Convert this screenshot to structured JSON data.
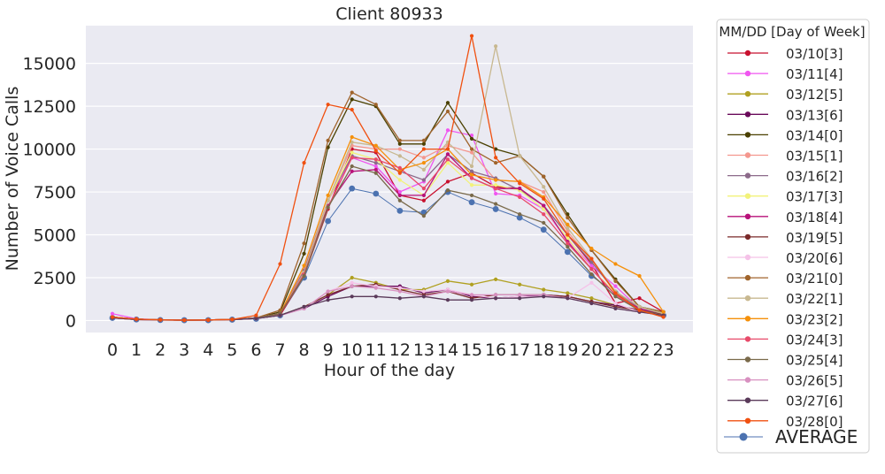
{
  "chart_data": {
    "type": "line",
    "title": "Client 80933",
    "xlabel": "Hour of the day",
    "ylabel": "Number of Voice Calls",
    "x": [
      0,
      1,
      2,
      3,
      4,
      5,
      6,
      7,
      8,
      9,
      10,
      11,
      12,
      13,
      14,
      15,
      16,
      17,
      18,
      19,
      20,
      21,
      22,
      23
    ],
    "ylim": [
      -700,
      17200
    ],
    "yticks": [
      0,
      2500,
      5000,
      7500,
      10000,
      12500,
      15000
    ],
    "grid": true,
    "legend_title": "MM/DD [Day of Week]",
    "legend_position": "outside-right",
    "series": [
      {
        "name": "03/10[3]",
        "color": "#c8102e",
        "values": [
          200,
          80,
          40,
          20,
          30,
          60,
          120,
          300,
          2600,
          6500,
          10000,
          9800,
          7300,
          7000,
          8100,
          8600,
          7800,
          7700,
          6700,
          5000,
          3300,
          1000,
          1300,
          500
        ]
      },
      {
        "name": "03/11[4]",
        "color": "#f055f0",
        "values": [
          400,
          100,
          40,
          20,
          30,
          60,
          150,
          400,
          2700,
          7000,
          9500,
          9000,
          7500,
          8100,
          11100,
          10800,
          7400,
          7300,
          6500,
          4700,
          3200,
          2000,
          700,
          300
        ]
      },
      {
        "name": "03/12[5]",
        "color": "#b0a020",
        "values": [
          150,
          60,
          30,
          20,
          20,
          50,
          120,
          300,
          800,
          1500,
          2500,
          2200,
          1800,
          1800,
          2300,
          2100,
          2400,
          2100,
          1800,
          1600,
          1300,
          900,
          600,
          350
        ]
      },
      {
        "name": "03/13[6]",
        "color": "#6a0a5a",
        "values": [
          150,
          60,
          30,
          20,
          20,
          50,
          120,
          300,
          700,
          1400,
          2000,
          2000,
          2000,
          1600,
          1800,
          1400,
          1300,
          1400,
          1500,
          1400,
          1100,
          900,
          600,
          300
        ]
      },
      {
        "name": "03/14[0]",
        "color": "#4a4000",
        "values": [
          200,
          80,
          40,
          20,
          30,
          60,
          150,
          500,
          3900,
          10100,
          12900,
          12500,
          10300,
          10300,
          12700,
          10600,
          10000,
          9600,
          8400,
          6200,
          4100,
          2400,
          800,
          500
        ]
      },
      {
        "name": "03/15[1]",
        "color": "#f4978e",
        "values": [
          200,
          80,
          40,
          20,
          30,
          60,
          150,
          400,
          3000,
          7000,
          10200,
          10000,
          10000,
          9500,
          10200,
          9800,
          8200,
          8100,
          7500,
          5200,
          3500,
          1600,
          800,
          400
        ]
      },
      {
        "name": "03/16[2]",
        "color": "#8c6a8a",
        "values": [
          200,
          80,
          40,
          20,
          30,
          60,
          150,
          400,
          2900,
          7000,
          9600,
          9200,
          8700,
          8200,
          9700,
          8700,
          8300,
          7600,
          6700,
          5000,
          3400,
          1700,
          700,
          400
        ]
      },
      {
        "name": "03/17[3]",
        "color": "#f2f27a",
        "values": [
          200,
          80,
          40,
          20,
          30,
          60,
          150,
          400,
          2600,
          7000,
          9800,
          9400,
          8200,
          7300,
          9200,
          7900,
          7900,
          7600,
          6500,
          4800,
          3000,
          1600,
          600,
          300
        ]
      },
      {
        "name": "03/18[4]",
        "color": "#b8127a",
        "values": [
          200,
          80,
          40,
          20,
          30,
          60,
          150,
          400,
          2700,
          6700,
          8700,
          8800,
          7300,
          7300,
          9700,
          8300,
          7700,
          7700,
          6700,
          4600,
          3000,
          1500,
          700,
          300
        ]
      },
      {
        "name": "03/19[5]",
        "color": "#7a2a2a",
        "values": [
          150,
          60,
          30,
          20,
          20,
          50,
          120,
          300,
          800,
          1500,
          2000,
          2100,
          1800,
          1500,
          1700,
          1300,
          1500,
          1500,
          1500,
          1400,
          1100,
          800,
          600,
          350
        ]
      },
      {
        "name": "03/20[6]",
        "color": "#f5c2e8",
        "values": [
          150,
          60,
          30,
          20,
          20,
          50,
          120,
          300,
          700,
          1700,
          2200,
          2000,
          1900,
          1700,
          1800,
          1500,
          1300,
          1400,
          1400,
          1300,
          2200,
          1000,
          500,
          300
        ]
      },
      {
        "name": "03/21[0]",
        "color": "#a0642c",
        "values": [
          200,
          80,
          40,
          20,
          30,
          60,
          150,
          600,
          4500,
          10500,
          13300,
          12600,
          10500,
          10500,
          12200,
          10000,
          9200,
          9600,
          8400,
          6000,
          4100,
          2300,
          800,
          500
        ]
      },
      {
        "name": "03/22[1]",
        "color": "#c8b890",
        "values": [
          200,
          80,
          40,
          20,
          30,
          60,
          150,
          400,
          2800,
          7000,
          10400,
          10200,
          9600,
          8800,
          10400,
          9000,
          16000,
          9600,
          7800,
          5400,
          3600,
          1700,
          800,
          400
        ]
      },
      {
        "name": "03/23[2]",
        "color": "#f5900a",
        "values": [
          200,
          80,
          40,
          20,
          30,
          60,
          150,
          400,
          3200,
          7300,
          10700,
          10200,
          8800,
          9200,
          10000,
          8500,
          8200,
          8100,
          7200,
          5600,
          4200,
          3300,
          2600,
          500
        ]
      },
      {
        "name": "03/24[3]",
        "color": "#e84a6a",
        "values": [
          200,
          80,
          40,
          20,
          30,
          60,
          150,
          400,
          2700,
          6600,
          9500,
          9400,
          8900,
          7700,
          9400,
          8300,
          7700,
          7200,
          6200,
          4500,
          3000,
          1500,
          600,
          300
        ]
      },
      {
        "name": "03/25[4]",
        "color": "#7a6a4a",
        "values": [
          200,
          80,
          40,
          20,
          30,
          60,
          150,
          400,
          2600,
          6600,
          9000,
          8600,
          7000,
          6100,
          7600,
          7300,
          6800,
          6200,
          5700,
          4300,
          2700,
          1400,
          600,
          300
        ]
      },
      {
        "name": "03/26[5]",
        "color": "#d890c0",
        "values": [
          150,
          60,
          30,
          20,
          20,
          50,
          120,
          300,
          700,
          1700,
          2000,
          1900,
          1700,
          1400,
          1700,
          1500,
          1500,
          1500,
          1500,
          1300,
          1000,
          700,
          500,
          300
        ]
      },
      {
        "name": "03/27[6]",
        "color": "#5a3a5a",
        "values": [
          150,
          60,
          30,
          20,
          20,
          50,
          120,
          300,
          800,
          1200,
          1400,
          1400,
          1300,
          1400,
          1200,
          1200,
          1300,
          1300,
          1400,
          1300,
          1000,
          700,
          500,
          300
        ]
      },
      {
        "name": "03/28[0]",
        "color": "#f05010",
        "values": [
          200,
          80,
          40,
          20,
          30,
          60,
          300,
          3300,
          9200,
          12600,
          12300,
          9900,
          8600,
          10000,
          10000,
          16600,
          9500,
          8000,
          7100,
          5000,
          3600,
          1600,
          600,
          200
        ]
      }
    ],
    "average": {
      "name": "AVERAGE",
      "color": "#4c72b0",
      "values": [
        150,
        60,
        30,
        20,
        20,
        50,
        100,
        300,
        2500,
        5800,
        7700,
        7400,
        6400,
        6300,
        7500,
        6900,
        6500,
        6000,
        5300,
        4000,
        2600,
        1600,
        600,
        300
      ]
    }
  }
}
